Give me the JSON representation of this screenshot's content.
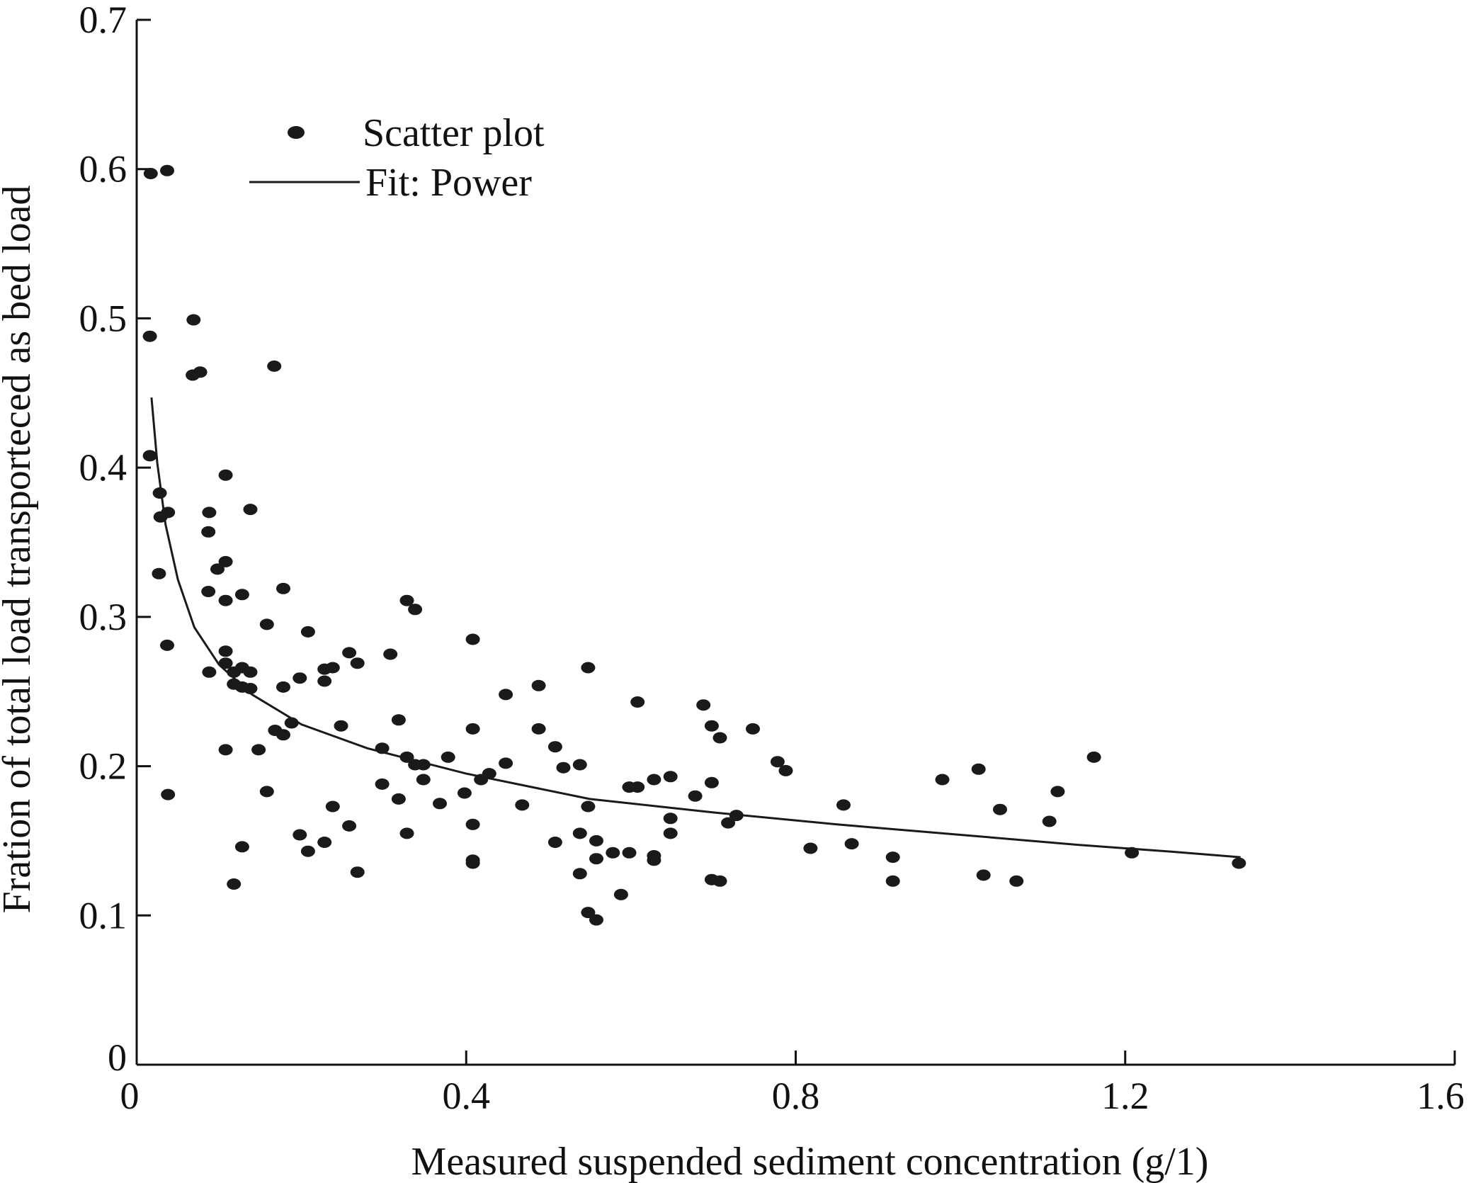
{
  "chart_data": {
    "type": "scatter",
    "title": "",
    "xlabel": "Measured suspended sediment concentration (g/1)",
    "ylabel": "Fration of total load transporteced as bed load",
    "xlim": [
      0,
      1.6
    ],
    "ylim": [
      0,
      0.7
    ],
    "x_ticks": [
      0,
      0.4,
      0.8,
      1.2,
      1.6
    ],
    "x_tick_labels": [
      "0",
      "0.4",
      "0.8",
      "1.2",
      "1.6"
    ],
    "y_ticks": [
      0,
      0.1,
      0.2,
      0.3,
      0.4,
      0.5,
      0.6,
      0.7
    ],
    "y_tick_labels": [
      "0",
      "0.1",
      "0.2",
      "0.3",
      "0.4",
      "0.5",
      "0.6",
      "0.7"
    ],
    "grid": false,
    "legend_position": "top-left",
    "series": [
      {
        "name": "Scatter plot",
        "kind": "points",
        "color": "#1a1a1a",
        "points": [
          [
            0.017,
            0.597
          ],
          [
            0.037,
            0.599
          ],
          [
            0.016,
            0.488
          ],
          [
            0.069,
            0.499
          ],
          [
            0.068,
            0.462
          ],
          [
            0.077,
            0.464
          ],
          [
            0.167,
            0.468
          ],
          [
            0.016,
            0.408
          ],
          [
            0.028,
            0.383
          ],
          [
            0.029,
            0.367
          ],
          [
            0.038,
            0.37
          ],
          [
            0.108,
            0.395
          ],
          [
            0.138,
            0.372
          ],
          [
            0.088,
            0.37
          ],
          [
            0.087,
            0.357
          ],
          [
            0.098,
            0.332
          ],
          [
            0.108,
            0.337
          ],
          [
            0.027,
            0.329
          ],
          [
            0.087,
            0.317
          ],
          [
            0.128,
            0.315
          ],
          [
            0.108,
            0.311
          ],
          [
            0.178,
            0.319
          ],
          [
            0.328,
            0.311
          ],
          [
            0.338,
            0.305
          ],
          [
            0.037,
            0.281
          ],
          [
            0.158,
            0.295
          ],
          [
            0.208,
            0.29
          ],
          [
            0.408,
            0.285
          ],
          [
            0.108,
            0.277
          ],
          [
            0.258,
            0.276
          ],
          [
            0.308,
            0.275
          ],
          [
            0.108,
            0.269
          ],
          [
            0.128,
            0.266
          ],
          [
            0.268,
            0.269
          ],
          [
            0.088,
            0.263
          ],
          [
            0.118,
            0.263
          ],
          [
            0.138,
            0.263
          ],
          [
            0.228,
            0.265
          ],
          [
            0.238,
            0.266
          ],
          [
            0.118,
            0.255
          ],
          [
            0.128,
            0.253
          ],
          [
            0.138,
            0.252
          ],
          [
            0.178,
            0.253
          ],
          [
            0.198,
            0.259
          ],
          [
            0.228,
            0.257
          ],
          [
            0.548,
            0.266
          ],
          [
            0.488,
            0.254
          ],
          [
            0.448,
            0.248
          ],
          [
            0.608,
            0.243
          ],
          [
            0.688,
            0.241
          ],
          [
            0.168,
            0.224
          ],
          [
            0.178,
            0.221
          ],
          [
            0.188,
            0.229
          ],
          [
            0.248,
            0.227
          ],
          [
            0.318,
            0.231
          ],
          [
            0.408,
            0.225
          ],
          [
            0.488,
            0.225
          ],
          [
            0.698,
            0.227
          ],
          [
            0.748,
            0.225
          ],
          [
            0.708,
            0.219
          ],
          [
            0.148,
            0.211
          ],
          [
            0.108,
            0.211
          ],
          [
            0.298,
            0.212
          ],
          [
            0.328,
            0.206
          ],
          [
            0.338,
            0.201
          ],
          [
            0.348,
            0.201
          ],
          [
            0.378,
            0.206
          ],
          [
            0.508,
            0.213
          ],
          [
            0.538,
            0.201
          ],
          [
            0.518,
            0.199
          ],
          [
            0.448,
            0.202
          ],
          [
            0.778,
            0.203
          ],
          [
            0.788,
            0.197
          ],
          [
            1.162,
            0.206
          ],
          [
            1.022,
            0.198
          ],
          [
            0.978,
            0.191
          ],
          [
            0.158,
            0.183
          ],
          [
            0.038,
            0.181
          ],
          [
            0.298,
            0.188
          ],
          [
            0.318,
            0.178
          ],
          [
            0.348,
            0.191
          ],
          [
            0.368,
            0.175
          ],
          [
            0.398,
            0.182
          ],
          [
            0.418,
            0.191
          ],
          [
            0.428,
            0.195
          ],
          [
            0.468,
            0.174
          ],
          [
            0.548,
            0.173
          ],
          [
            0.598,
            0.186
          ],
          [
            0.608,
            0.186
          ],
          [
            0.628,
            0.191
          ],
          [
            0.648,
            0.193
          ],
          [
            0.678,
            0.18
          ],
          [
            0.698,
            0.189
          ],
          [
            0.648,
            0.165
          ],
          [
            0.728,
            0.167
          ],
          [
            0.718,
            0.162
          ],
          [
            0.858,
            0.174
          ],
          [
            1.048,
            0.171
          ],
          [
            1.118,
            0.183
          ],
          [
            1.108,
            0.163
          ],
          [
            0.198,
            0.154
          ],
          [
            0.208,
            0.143
          ],
          [
            0.228,
            0.149
          ],
          [
            0.238,
            0.173
          ],
          [
            0.258,
            0.16
          ],
          [
            0.328,
            0.155
          ],
          [
            0.408,
            0.161
          ],
          [
            0.508,
            0.149
          ],
          [
            0.538,
            0.155
          ],
          [
            0.558,
            0.15
          ],
          [
            0.578,
            0.142
          ],
          [
            0.598,
            0.142
          ],
          [
            0.648,
            0.155
          ],
          [
            0.818,
            0.145
          ],
          [
            0.868,
            0.148
          ],
          [
            0.918,
            0.139
          ],
          [
            0.128,
            0.146
          ],
          [
            0.408,
            0.137
          ],
          [
            0.408,
            0.135
          ],
          [
            0.558,
            0.138
          ],
          [
            0.628,
            0.14
          ],
          [
            0.628,
            0.137
          ],
          [
            1.208,
            0.142
          ],
          [
            1.338,
            0.135
          ],
          [
            0.118,
            0.121
          ],
          [
            0.268,
            0.129
          ],
          [
            0.538,
            0.128
          ],
          [
            0.548,
            0.102
          ],
          [
            0.558,
            0.097
          ],
          [
            0.588,
            0.114
          ],
          [
            0.698,
            0.124
          ],
          [
            0.708,
            0.123
          ],
          [
            0.918,
            0.123
          ],
          [
            1.028,
            0.127
          ],
          [
            1.068,
            0.123
          ]
        ]
      },
      {
        "name": "Fit: Power",
        "kind": "line",
        "color": "#1a1a1a",
        "points": [
          [
            0.018,
            0.447
          ],
          [
            0.025,
            0.403
          ],
          [
            0.035,
            0.362
          ],
          [
            0.05,
            0.325
          ],
          [
            0.07,
            0.293
          ],
          [
            0.1,
            0.268
          ],
          [
            0.14,
            0.248
          ],
          [
            0.2,
            0.228
          ],
          [
            0.28,
            0.212
          ],
          [
            0.4,
            0.195
          ],
          [
            0.55,
            0.178
          ],
          [
            0.7,
            0.169
          ],
          [
            0.85,
            0.161
          ],
          [
            1.0,
            0.154
          ],
          [
            1.15,
            0.147
          ],
          [
            1.25,
            0.143
          ],
          [
            1.34,
            0.139
          ]
        ]
      }
    ]
  }
}
